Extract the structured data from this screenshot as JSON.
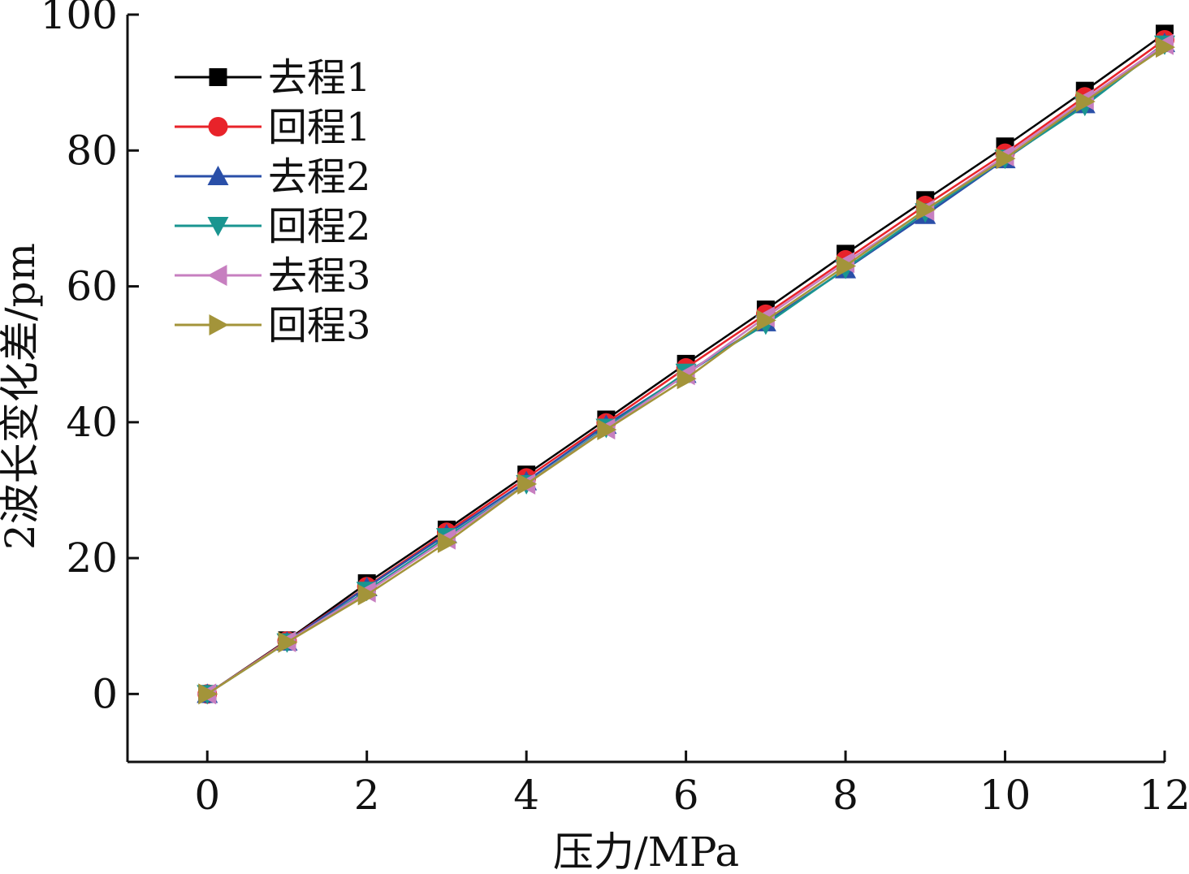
{
  "chart_data": {
    "type": "line",
    "title": "",
    "xlabel": "压力/MPa",
    "ylabel": "2波长变化差/pm",
    "xlim": [
      -1,
      12
    ],
    "ylim": [
      -10,
      100
    ],
    "xticks": [
      0,
      2,
      4,
      6,
      8,
      10,
      12
    ],
    "yticks": [
      0,
      20,
      40,
      60,
      80,
      100
    ],
    "grid": false,
    "legend_position": "top-left",
    "x": [
      0,
      1,
      2,
      3,
      4,
      5,
      6,
      7,
      8,
      9,
      10,
      11,
      12
    ],
    "series": [
      {
        "name": "去程1",
        "color": "#000000",
        "marker": "square",
        "values": [
          0,
          7.9,
          16.3,
          24.2,
          32.3,
          40.4,
          48.6,
          56.6,
          64.8,
          72.7,
          80.6,
          88.8,
          97.2
        ]
      },
      {
        "name": "回程1",
        "color": "#e8232a",
        "marker": "circle",
        "values": [
          0,
          7.8,
          15.8,
          23.8,
          31.8,
          39.9,
          48.0,
          55.9,
          63.9,
          71.9,
          79.6,
          87.9,
          96.3
        ]
      },
      {
        "name": "去程2",
        "color": "#2a4fa8",
        "marker": "triangle-up",
        "values": [
          0,
          7.7,
          15.7,
          23.5,
          31.3,
          39.6,
          47.1,
          54.7,
          62.5,
          70.5,
          78.7,
          86.8,
          95.8
        ]
      },
      {
        "name": "回程2",
        "color": "#1a9590",
        "marker": "triangle-down",
        "values": [
          0,
          7.6,
          15.2,
          23.1,
          30.9,
          39.2,
          47.3,
          54.4,
          62.6,
          70.9,
          78.8,
          86.6,
          95.6
        ]
      },
      {
        "name": "去程3",
        "color": "#c77fc0",
        "marker": "triangle-left",
        "values": [
          0,
          7.7,
          15.0,
          22.8,
          30.9,
          39.0,
          47.0,
          55.5,
          63.5,
          71.2,
          79.2,
          87.5,
          95.6
        ]
      },
      {
        "name": "回程3",
        "color": "#a3943a",
        "marker": "triangle-right",
        "values": [
          0,
          7.6,
          14.6,
          22.3,
          30.9,
          38.9,
          46.4,
          55.0,
          63.0,
          71.3,
          78.8,
          87.2,
          95.2
        ]
      }
    ]
  }
}
